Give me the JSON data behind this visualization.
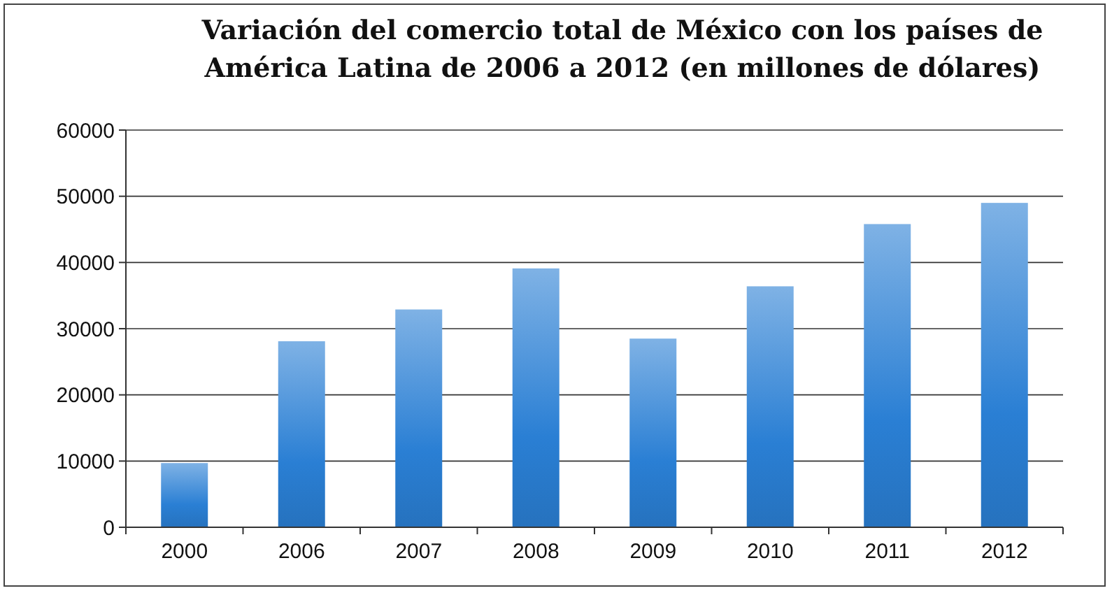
{
  "chart_data": {
    "type": "bar",
    "title": "Variación del comercio total de México con los países de América Latina de 2006 a 2012 (en millones de dólares)",
    "categories": [
      "2000",
      "2006",
      "2007",
      "2008",
      "2009",
      "2010",
      "2011",
      "2012"
    ],
    "values": [
      9700,
      28100,
      32900,
      39100,
      28500,
      36400,
      45800,
      49000
    ],
    "color": "#2a7fd4",
    "ylim": [
      0,
      60000
    ],
    "yticks": [
      0,
      10000,
      20000,
      30000,
      40000,
      50000,
      60000
    ],
    "grid": "y"
  }
}
